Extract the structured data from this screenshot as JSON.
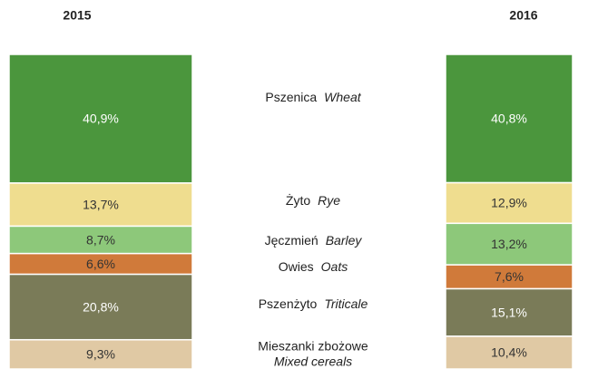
{
  "chart_data": {
    "type": "stacked-bar",
    "categories": [
      "2015",
      "2016"
    ],
    "series": [
      {
        "name": "Pszenica",
        "name_en": "Wheat",
        "color": "#4b963d",
        "text_color": "#ffffff",
        "values": [
          40.9,
          40.8
        ],
        "value_labels": [
          "40,9%",
          "40,8%"
        ]
      },
      {
        "name": "Żyto",
        "name_en": "Rye",
        "color": "#efdd8f",
        "text_color": "#333333",
        "values": [
          13.7,
          12.9
        ],
        "value_labels": [
          "13,7%",
          "12,9%"
        ]
      },
      {
        "name": "Jęczmień",
        "name_en": "Barley",
        "color": "#8dc87a",
        "text_color": "#333333",
        "values": [
          8.7,
          13.2
        ],
        "value_labels": [
          "8,7%",
          "13,2%"
        ]
      },
      {
        "name": "Owies",
        "name_en": "Oats",
        "color": "#d07a3a",
        "text_color": "#333333",
        "values": [
          6.6,
          7.6
        ],
        "value_labels": [
          "6,6%",
          "7,6%"
        ]
      },
      {
        "name": "Pszenżyto",
        "name_en": "Triticale",
        "color": "#7a7b58",
        "text_color": "#ffffff",
        "values": [
          20.8,
          15.1
        ],
        "value_labels": [
          "20,8%",
          "15,1%"
        ]
      },
      {
        "name": "Mieszanki zbożowe",
        "name_en": "Mixed cereals",
        "color": "#e0c9a4",
        "text_color": "#333333",
        "values": [
          9.3,
          10.4
        ],
        "value_labels": [
          "9,3%",
          "10,4%"
        ]
      }
    ]
  }
}
